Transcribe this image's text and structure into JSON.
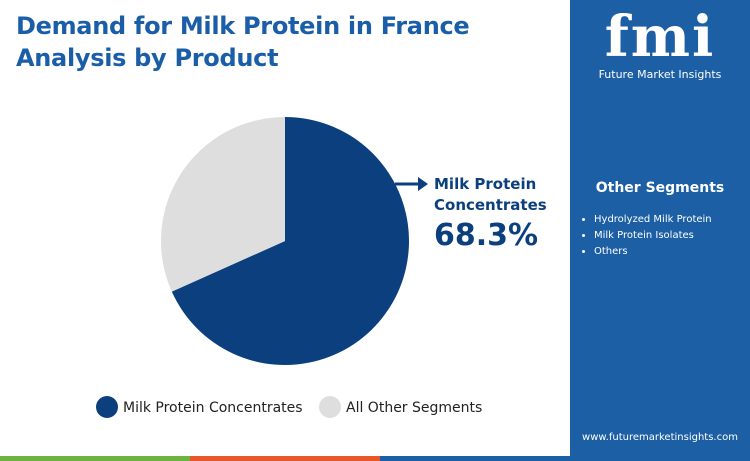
{
  "chart_data": {
    "type": "pie",
    "title": "Demand for Milk Protein in France",
    "subtitle": "Analysis by Product",
    "categories": [
      "Milk Protein Concentrates",
      "All Other Segments"
    ],
    "values": [
      68.3,
      31.7
    ],
    "value_labels": [
      "68.3%",
      null
    ],
    "colors": [
      "#0b3f7d",
      "#dedede"
    ],
    "start_angle": 0,
    "direction": "clockwise"
  },
  "other_segments": {
    "title": "Other Segments",
    "items": [
      "Hydrolyzed Milk Protein",
      "Milk Protein Isolates",
      "Others"
    ]
  },
  "brand": {
    "logo": "fmi",
    "name": "Future Market Insights",
    "url": "www.futuremarketinsights.com"
  }
}
